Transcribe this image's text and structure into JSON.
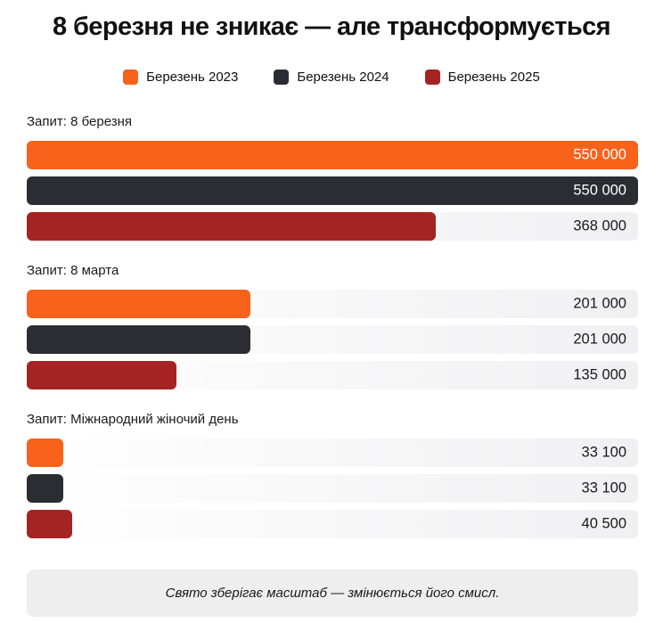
{
  "title": "8 березня не зникає — але трансформується",
  "footer": "Свято зберігає масштаб — змінюється його смисл.",
  "colors": {
    "orange_2023": "#F8621A",
    "dark_2024": "#2B2D33",
    "red_2025": "#A32423",
    "track": "#F0F0F2",
    "footer_bg": "#EEEEEF",
    "text": "#1A1A1A",
    "title_text": "#111111",
    "value_on_bar": "#FFFFFF"
  },
  "legend": [
    {
      "label": "Березень 2023",
      "color": "#F8621A"
    },
    {
      "label": "Березень 2024",
      "color": "#2B2D33"
    },
    {
      "label": "Березень 2025",
      "color": "#A32423"
    }
  ],
  "chart_data": {
    "type": "bar",
    "orientation": "horizontal",
    "max_value": 550000,
    "grid": false,
    "legend_position": "top-center",
    "series_names": [
      "Березень 2023",
      "Березень 2024",
      "Березень 2025"
    ],
    "series_colors": [
      "#F8621A",
      "#2B2D33",
      "#A32423"
    ],
    "groups": [
      {
        "label": "Запит: 8 березня",
        "values": [
          550000,
          550000,
          368000
        ],
        "value_labels": [
          "550 000",
          "550 000",
          "368 000"
        ]
      },
      {
        "label": "Запит: 8 марта",
        "values": [
          201000,
          201000,
          135000
        ],
        "value_labels": [
          "201 000",
          "201 000",
          "135 000"
        ]
      },
      {
        "label": "Запит: Міжнародний жіночий день",
        "values": [
          33100,
          33100,
          40500
        ],
        "value_labels": [
          "33 100",
          "33 100",
          "40 500"
        ]
      }
    ]
  }
}
